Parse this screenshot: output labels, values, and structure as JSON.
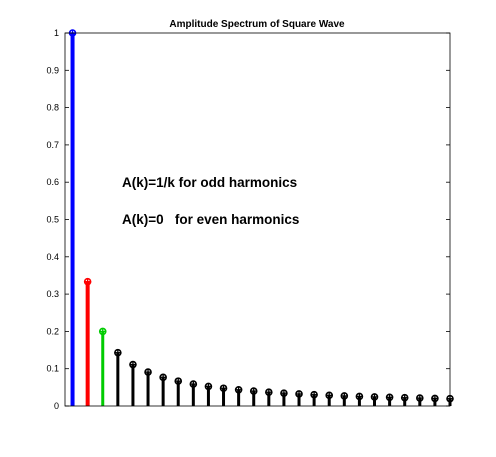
{
  "chart_data": {
    "type": "stem",
    "title": "Amplitude Spectrum of Square Wave",
    "xlabel": "",
    "ylabel": "",
    "xlim": [
      0,
      51
    ],
    "ylim": [
      0,
      1
    ],
    "yticks": [
      0,
      0.1,
      0.2,
      0.3,
      0.4,
      0.5,
      0.6,
      0.7,
      0.8,
      0.9,
      1
    ],
    "ytick_labels": [
      "0",
      "0.1",
      "0.2",
      "0.3",
      "0.4",
      "0.5",
      "0.6",
      "0.7",
      "0.8",
      "0.9",
      "1"
    ],
    "grid": false,
    "annotations": [
      "A(k)=1/k for odd harmonics",
      "A(k)=0   for even harmonics"
    ],
    "series": [
      {
        "k": [
          1
        ],
        "values": [
          1.0
        ],
        "color": "#0000ff",
        "marker": "circle-cross",
        "linewidth": 4
      },
      {
        "k": [
          3
        ],
        "values": [
          0.3333
        ],
        "color": "#ff0000",
        "marker": "circle-cross",
        "linewidth": 4
      },
      {
        "k": [
          5
        ],
        "values": [
          0.2
        ],
        "color": "#00cc00",
        "marker": "circle-cross",
        "linewidth": 3
      },
      {
        "k": [
          7,
          9,
          11,
          13,
          15,
          17,
          19,
          21,
          23,
          25,
          27,
          29,
          31,
          33,
          35,
          37,
          39,
          41,
          43,
          45,
          47,
          49,
          51
        ],
        "values": [
          0.1429,
          0.1111,
          0.0909,
          0.0769,
          0.0667,
          0.0588,
          0.0526,
          0.0476,
          0.0435,
          0.04,
          0.037,
          0.0345,
          0.0323,
          0.0303,
          0.0286,
          0.027,
          0.0256,
          0.0244,
          0.0233,
          0.0222,
          0.0213,
          0.0204,
          0.0196
        ],
        "color": "#000000",
        "marker": "circle-cross",
        "linewidth": 3
      }
    ]
  }
}
